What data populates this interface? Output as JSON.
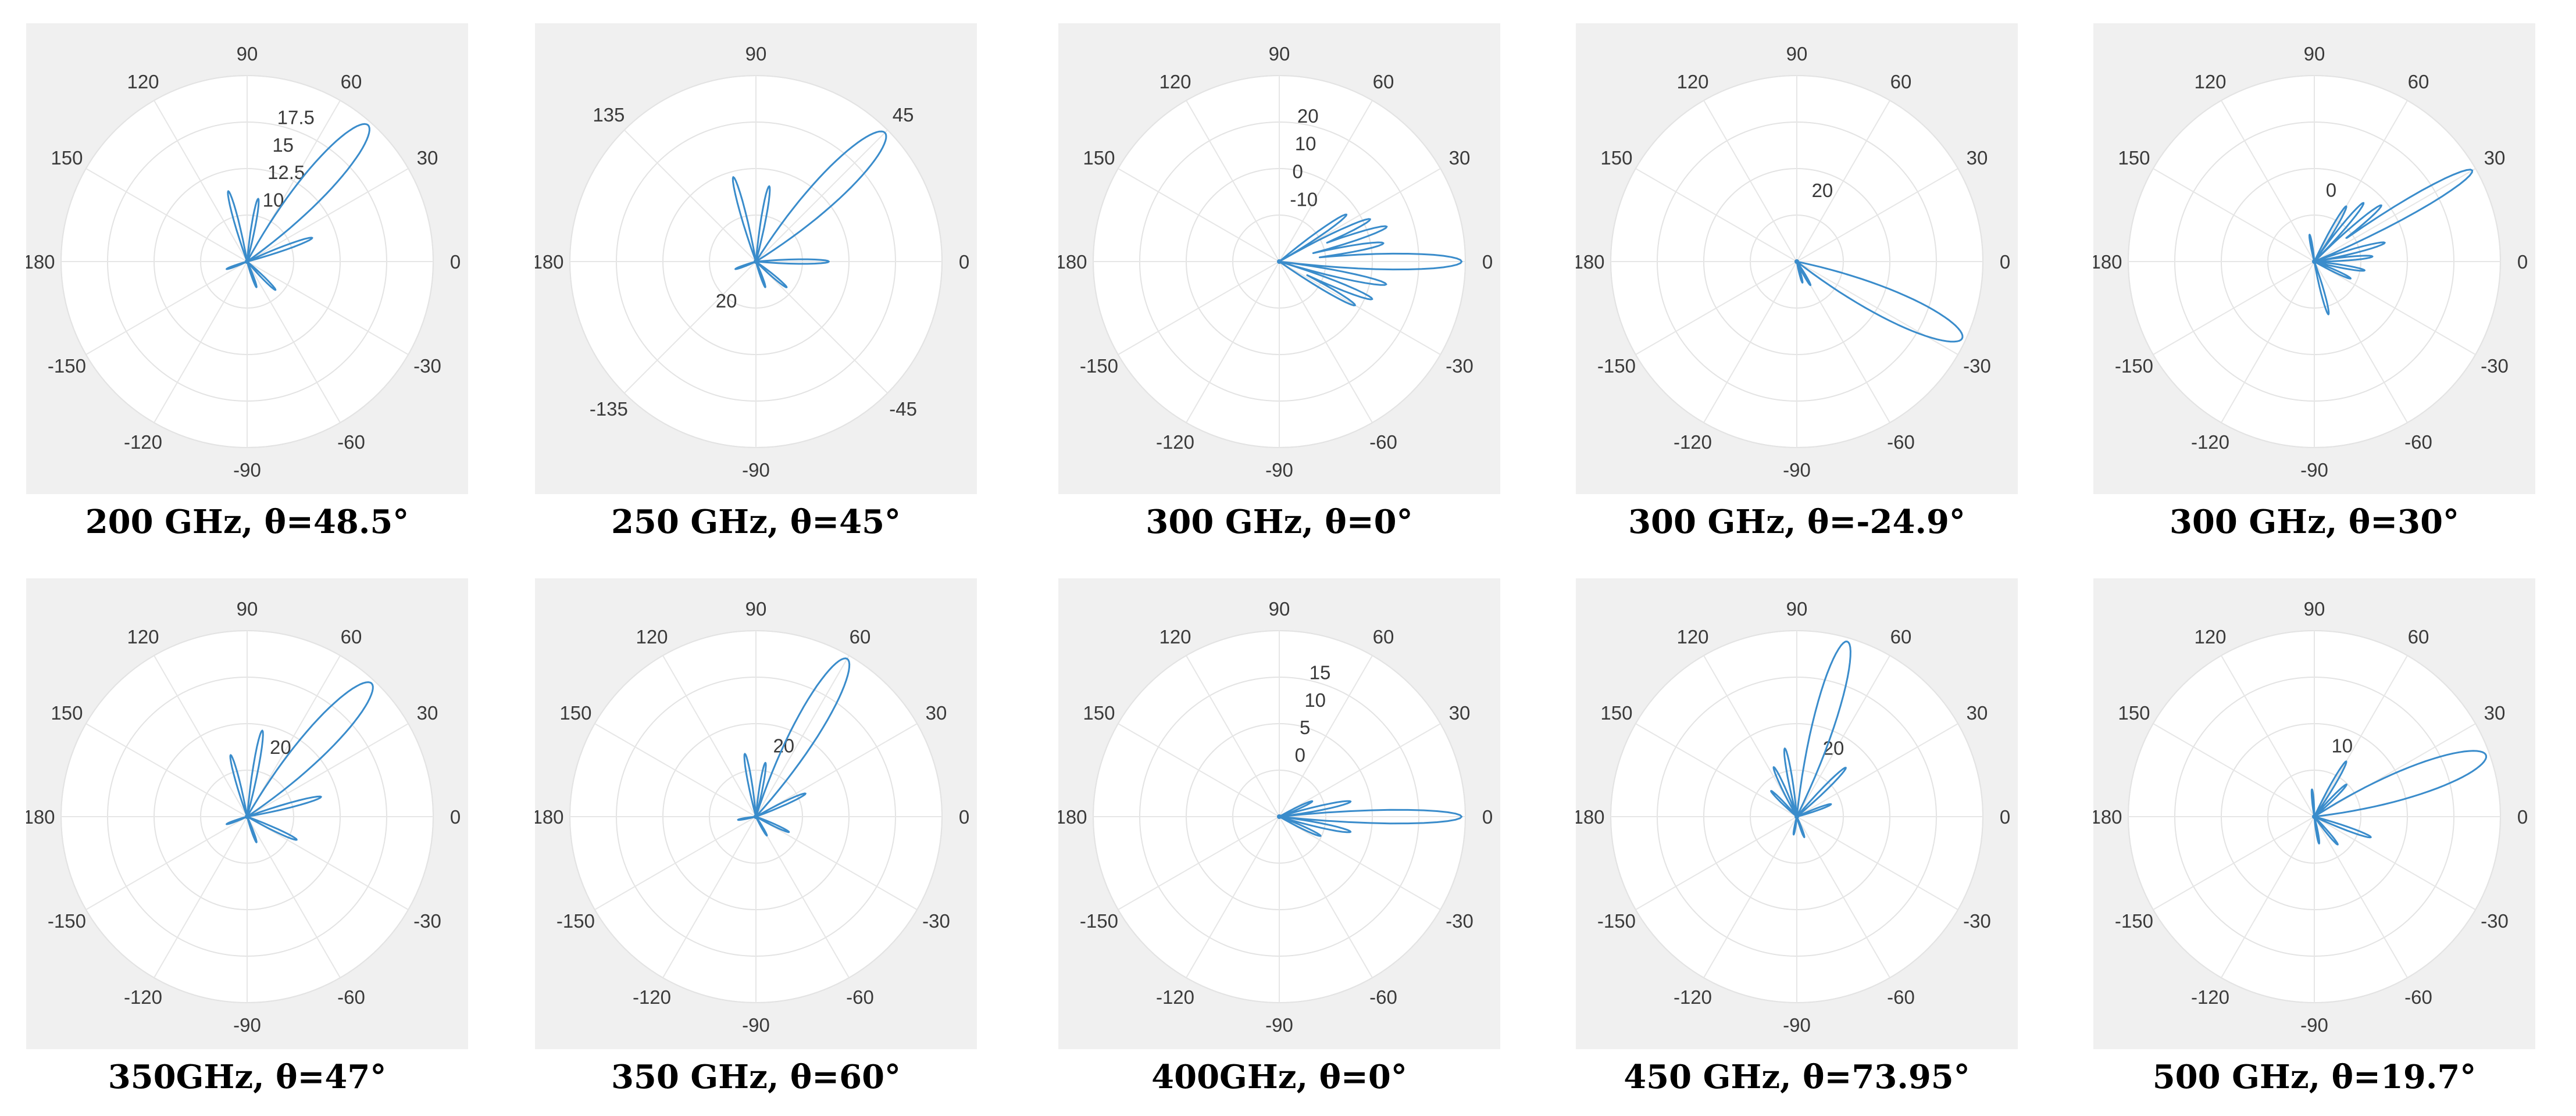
{
  "chart_data": [
    {
      "type": "polar",
      "title": "200 GHz, θ=48.5°",
      "steer_deg": 48.5,
      "angle_labels": [
        "90",
        "60",
        "30",
        "0",
        "-30",
        "-60",
        "-90",
        "-120",
        "-150",
        "180",
        "150",
        "120"
      ],
      "angle_values": [
        90,
        60,
        30,
        0,
        -30,
        -60,
        -90,
        -120,
        -150,
        180,
        150,
        120
      ],
      "radial_ticks": [
        "10",
        "12.5",
        "15",
        "17.5"
      ],
      "radial_tick_angle": 80,
      "side_lobes": [
        [
          105,
          0.4
        ],
        [
          80,
          0.35
        ],
        [
          20,
          0.38
        ],
        [
          -45,
          0.22
        ],
        [
          -70,
          0.15
        ],
        [
          200,
          0.12
        ]
      ],
      "main_width": 13
    },
    {
      "type": "polar",
      "title": "250 GHz, θ=45°",
      "steer_deg": 45,
      "angle_labels": [
        "90",
        "45",
        "0",
        "-45",
        "-90",
        "-135",
        "180",
        "135"
      ],
      "angle_values": [
        90,
        45,
        0,
        -45,
        -90,
        -135,
        180,
        135
      ],
      "radial_ticks": [
        "20"
      ],
      "radial_tick_angle": -135,
      "side_lobes": [
        [
          105,
          0.48
        ],
        [
          80,
          0.42
        ],
        [
          0,
          0.4
        ],
        [
          -40,
          0.22
        ],
        [
          -70,
          0.15
        ],
        [
          200,
          0.12
        ]
      ],
      "main_width": 13
    },
    {
      "type": "polar",
      "title": "300 GHz, θ=0°",
      "steer_deg": 0,
      "angle_labels": [
        "90",
        "60",
        "30",
        "0",
        "-30",
        "-60",
        "-90",
        "-120",
        "-150",
        "180",
        "150",
        "120"
      ],
      "angle_values": [
        90,
        60,
        30,
        0,
        -30,
        -60,
        -90,
        -120,
        -150,
        180,
        150,
        120
      ],
      "radial_ticks": [
        "-10",
        "0",
        "10",
        "20"
      ],
      "radial_tick_angle": 85,
      "side_lobes": [
        [
          18,
          0.62
        ],
        [
          10,
          0.58
        ],
        [
          25,
          0.55
        ],
        [
          -12,
          0.6
        ],
        [
          -22,
          0.55
        ],
        [
          -30,
          0.48
        ],
        [
          35,
          0.45
        ]
      ],
      "main_width": 7
    },
    {
      "type": "polar",
      "title": "300 GHz, θ=-24.9°",
      "steer_deg": -24.9,
      "angle_labels": [
        "90",
        "60",
        "30",
        "0",
        "-30",
        "-60",
        "-90",
        "-120",
        "-150",
        "180",
        "150",
        "120"
      ],
      "angle_values": [
        90,
        60,
        30,
        0,
        -30,
        -60,
        -90,
        -120,
        -150,
        180,
        150,
        120
      ],
      "radial_ticks": [
        "20"
      ],
      "radial_tick_angle": 82,
      "side_lobes": [
        [
          -60,
          0.15
        ],
        [
          -75,
          0.12
        ]
      ],
      "main_width": 13
    },
    {
      "type": "polar",
      "title": "300 GHz, θ=30°",
      "steer_deg": 30,
      "angle_labels": [
        "90",
        "60",
        "30",
        "0",
        "-30",
        "-60",
        "-90",
        "-120",
        "-150",
        "180",
        "150",
        "120"
      ],
      "angle_values": [
        90,
        60,
        30,
        0,
        -30,
        -60,
        -90,
        -120,
        -150,
        180,
        150,
        120
      ],
      "radial_ticks": [
        "0"
      ],
      "radial_tick_angle": 85,
      "side_lobes": [
        [
          60,
          0.35
        ],
        [
          50,
          0.42
        ],
        [
          40,
          0.48
        ],
        [
          15,
          0.4
        ],
        [
          5,
          0.32
        ],
        [
          -10,
          0.28
        ],
        [
          -25,
          0.22
        ],
        [
          -75,
          0.3
        ],
        [
          100,
          0.15
        ]
      ],
      "main_width": 7
    },
    {
      "type": "polar",
      "title": "350GHz, θ=47°",
      "steer_deg": 47,
      "angle_labels": [
        "90",
        "60",
        "30",
        "0",
        "-30",
        "-60",
        "-90",
        "-120",
        "-150",
        "180",
        "150",
        "120"
      ],
      "angle_values": [
        90,
        60,
        30,
        0,
        -30,
        -60,
        -90,
        -120,
        -150,
        180,
        150,
        120
      ],
      "radial_ticks": [
        "20"
      ],
      "radial_tick_angle": 75,
      "side_lobes": [
        [
          105,
          0.35
        ],
        [
          80,
          0.48
        ],
        [
          15,
          0.42
        ],
        [
          -25,
          0.3
        ],
        [
          -70,
          0.15
        ],
        [
          200,
          0.12
        ]
      ],
      "main_width": 13
    },
    {
      "type": "polar",
      "title": "350 GHz, θ=60°",
      "steer_deg": 60,
      "angle_labels": [
        "90",
        "60",
        "30",
        "0",
        "-30",
        "-60",
        "-90",
        "-120",
        "-150",
        "180",
        "150",
        "120"
      ],
      "angle_values": [
        90,
        60,
        30,
        0,
        -30,
        -60,
        -90,
        -120,
        -150,
        180,
        150,
        120
      ],
      "radial_ticks": [
        "20"
      ],
      "radial_tick_angle": 80,
      "side_lobes": [
        [
          100,
          0.35
        ],
        [
          80,
          0.3
        ],
        [
          25,
          0.3
        ],
        [
          -25,
          0.2
        ],
        [
          -60,
          0.12
        ],
        [
          190,
          0.1
        ]
      ],
      "main_width": 12
    },
    {
      "type": "polar",
      "title": "400GHz, θ=0°",
      "steer_deg": 0,
      "angle_labels": [
        "90",
        "60",
        "30",
        "0",
        "-30",
        "-60",
        "-90",
        "-120",
        "-150",
        "180",
        "150",
        "120"
      ],
      "angle_values": [
        90,
        60,
        30,
        0,
        -30,
        -60,
        -90,
        -120,
        -150,
        180,
        150,
        120
      ],
      "radial_ticks": [
        "0",
        "5",
        "10",
        "15"
      ],
      "radial_tick_angle": 80,
      "side_lobes": [
        [
          12,
          0.4
        ],
        [
          -12,
          0.4
        ],
        [
          -25,
          0.25
        ],
        [
          25,
          0.2
        ]
      ],
      "main_width": 6
    },
    {
      "type": "polar",
      "title": "450 GHz, θ=73.95°",
      "steer_deg": 73.95,
      "angle_labels": [
        "90",
        "60",
        "30",
        "0",
        "-30",
        "-60",
        "-90",
        "-120",
        "-150",
        "180",
        "150",
        "120"
      ],
      "angle_values": [
        90,
        60,
        30,
        0,
        -30,
        -60,
        -90,
        -120,
        -150,
        180,
        150,
        120
      ],
      "radial_ticks": [
        "20"
      ],
      "radial_tick_angle": 72,
      "side_lobes": [
        [
          100,
          0.38
        ],
        [
          115,
          0.3
        ],
        [
          135,
          0.2
        ],
        [
          45,
          0.38
        ],
        [
          20,
          0.2
        ],
        [
          -70,
          0.12
        ],
        [
          -100,
          0.1
        ]
      ],
      "main_width": 10
    },
    {
      "type": "polar",
      "title": "500 GHz, θ=19.7°",
      "steer_deg": 19.7,
      "angle_labels": [
        "90",
        "60",
        "30",
        "0",
        "-30",
        "-60",
        "-90",
        "-120",
        "-150",
        "180",
        "150",
        "120"
      ],
      "angle_values": [
        90,
        60,
        30,
        0,
        -30,
        -60,
        -90,
        -120,
        -150,
        180,
        150,
        120
      ],
      "radial_ticks": [
        "10"
      ],
      "radial_tick_angle": 80,
      "side_lobes": [
        [
          60,
          0.35
        ],
        [
          45,
          0.25
        ],
        [
          -20,
          0.33
        ],
        [
          -50,
          0.2
        ],
        [
          -80,
          0.15
        ],
        [
          95,
          0.15
        ]
      ],
      "main_width": 13
    }
  ]
}
